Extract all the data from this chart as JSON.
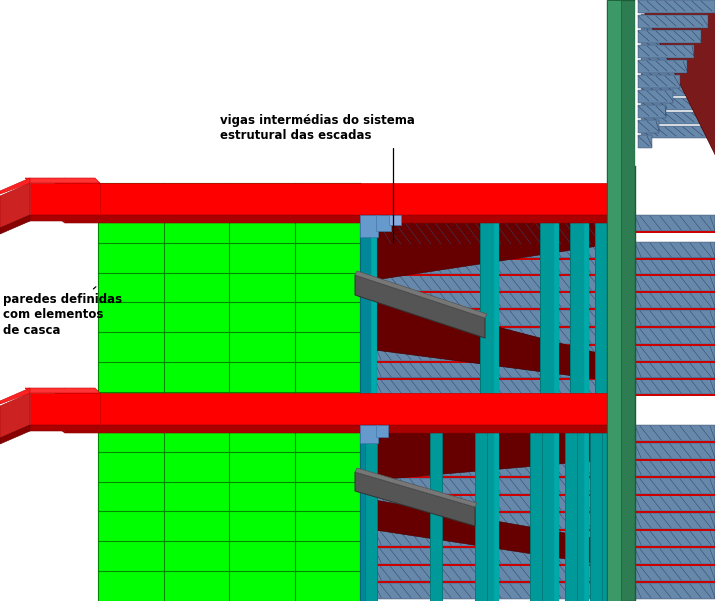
{
  "bg": "#ffffff",
  "green_wall": "#00ff00",
  "green_grid": "#008800",
  "red": "#ff0000",
  "red_dark": "#cc0000",
  "red_shadow": "#990000",
  "red_darker": "#660000",
  "darkred_beam": "#8b0000",
  "teal_col": "#008b8b",
  "teal_dark": "#006666",
  "green_col_main": "#2e7d52",
  "green_col_light": "#3a9966",
  "blue_slab": "#6699bb",
  "blue_light": "#88aacc",
  "stripe_base": "#6688aa",
  "stripe_line": "#4466aa",
  "stripe_dark": "#334466",
  "gray_beam": "#555555",
  "gray_light": "#777777",
  "white": "#ffffff",
  "ann1": "vigas intermédias do sistema\nestrutural das escadas",
  "ann2": "paredes definidas\ncom elementos\nde casca"
}
